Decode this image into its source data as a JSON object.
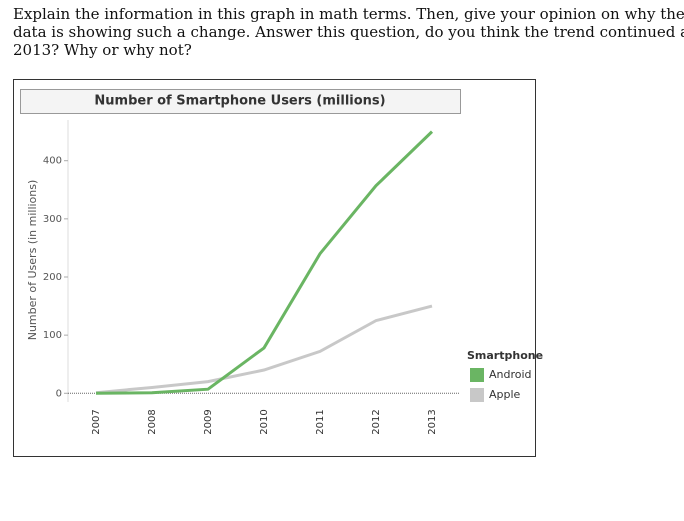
{
  "question_lines": [
    "Explain the information in this graph in math terms.  Then, give your opinion on why the",
    "data is showing such a change. Answer this question, do you think the trend continued after",
    "2013?  Why or why not?"
  ],
  "chart_data": {
    "type": "line",
    "title": "Number of Smartphone Users (millions)",
    "y_label": "Number of Users (in millions)",
    "categories": [
      "2007",
      "2008",
      "2009",
      "2010",
      "2011",
      "2012",
      "2013"
    ],
    "legend_title": "Smartphone",
    "series": [
      {
        "name": "Android",
        "color": "#6ab563",
        "values": [
          0,
          1,
          7,
          78,
          240,
          357,
          450
        ]
      },
      {
        "name": "Apple",
        "color": "#c8c8c8",
        "values": [
          1,
          10,
          20,
          40,
          72,
          125,
          150
        ]
      }
    ],
    "ylim": [
      -15,
      470
    ],
    "yticks": [
      0,
      100,
      200,
      300,
      400
    ],
    "grid": false,
    "legend": "right"
  }
}
